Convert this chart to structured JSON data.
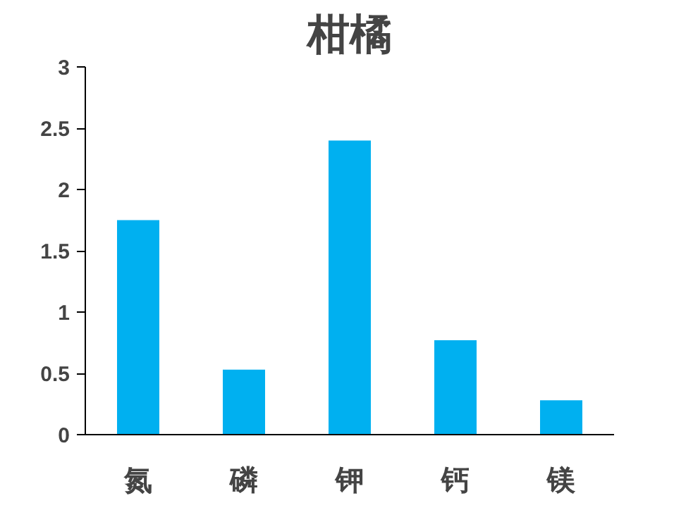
{
  "chart_data": {
    "type": "bar",
    "title": "柑橘",
    "categories": [
      "氮",
      "磷",
      "钾",
      "钙",
      "镁"
    ],
    "values": [
      1.75,
      0.53,
      2.4,
      0.77,
      0.28
    ],
    "color": "#00b0f0",
    "ylim": [
      0,
      3
    ],
    "yticks": [
      0,
      {
        "value": 0.5,
        "label": "0.5"
      },
      1,
      {
        "value": 1.5,
        "label": "1.5"
      },
      2,
      {
        "value": 2.5,
        "label": "2.5"
      },
      3
    ],
    "grid": false
  }
}
